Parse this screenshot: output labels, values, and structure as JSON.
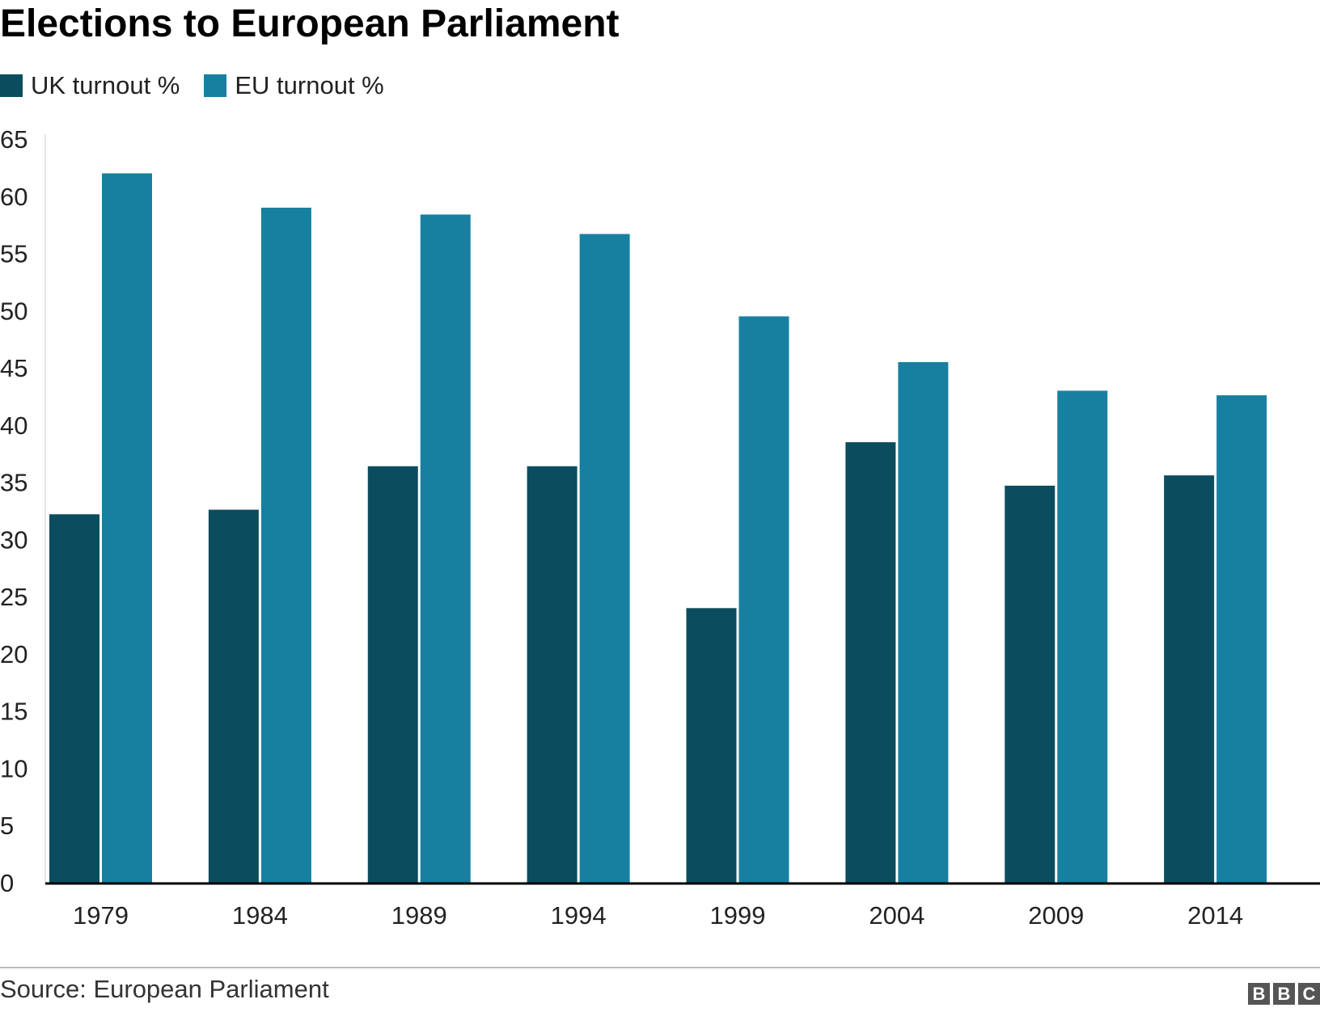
{
  "title": "Elections to European Parliament",
  "source": "Source: European Parliament",
  "logo": [
    "B",
    "B",
    "C"
  ],
  "colors": {
    "uk": "#0b4d5e",
    "eu": "#1780a1"
  },
  "chart_data": {
    "type": "bar",
    "title": "Elections to European Parliament",
    "categories": [
      "1979",
      "1984",
      "1989",
      "1994",
      "1999",
      "2004",
      "2009",
      "2014"
    ],
    "series": [
      {
        "name": "UK turnout %",
        "values": [
          32.2,
          32.6,
          36.4,
          36.4,
          24.0,
          38.5,
          34.7,
          35.6
        ]
      },
      {
        "name": "EU turnout %",
        "values": [
          62.0,
          59.0,
          58.4,
          56.7,
          49.5,
          45.5,
          43.0,
          42.6
        ]
      }
    ],
    "ylim": [
      0,
      65
    ],
    "yticks": [
      0,
      5,
      10,
      15,
      20,
      25,
      30,
      35,
      40,
      45,
      50,
      55,
      60,
      65
    ],
    "xlabel": "",
    "ylabel": "",
    "legend": "top-left",
    "grid": false
  }
}
